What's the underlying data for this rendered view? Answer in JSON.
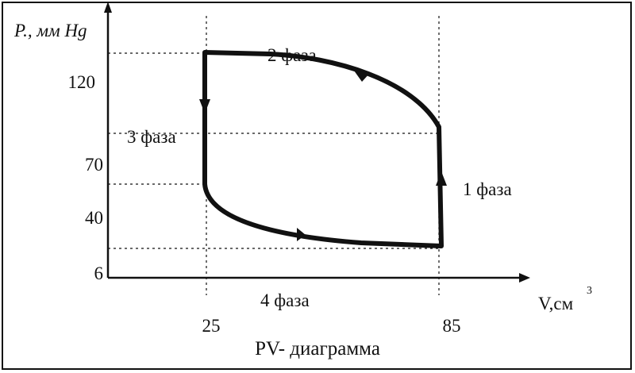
{
  "title": "PV- диаграмма",
  "y_axis_label": "P., мм Hg",
  "x_axis_label": "V,см",
  "x_axis_label_sup": "3",
  "y_ticks": [
    "120",
    "70",
    "40",
    "6"
  ],
  "x_ticks": [
    "25",
    "85"
  ],
  "phases": {
    "phase1": "1 фаза",
    "phase2": "2 фаза",
    "phase3": "3 фаза",
    "phase4": "4 фаза"
  },
  "colors": {
    "ink": "#111111",
    "background": "#ffffff"
  }
}
